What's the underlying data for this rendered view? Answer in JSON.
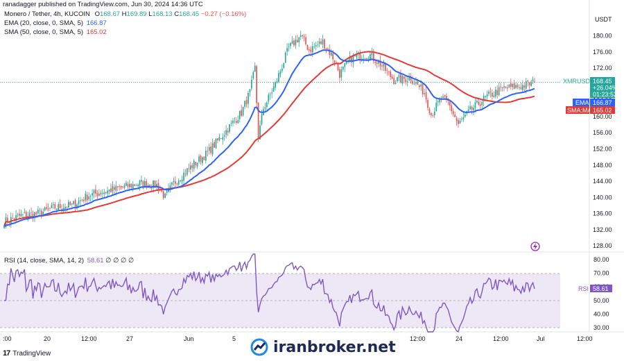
{
  "caption": "ranadagger published on TradingView.com, Jun 30, 2024 14:36 UTC",
  "legend": {
    "symbol": "Monero / Tether, 4h, KUCOIN",
    "o_label": "O",
    "o": "168.67",
    "h_label": "H",
    "h": "169.89",
    "l_label": "L",
    "l": "168.13",
    "c_label": "C",
    "c": "168.45",
    "change": "−0.27 (−0.16%)",
    "ema": "EMA (20, close, 0, SMA, 5)",
    "ema_value": "166.87",
    "sma": "SMA (50, close, 0, SMA, 5)",
    "sma_value": "165.02",
    "rsi": "RSI (14, close, SMA, 14, 2)",
    "rsi_value": "58.61",
    "rsi_extra": "∅ ∅ ∅ ∅"
  },
  "axis": {
    "currency": "USDT",
    "price_ticks": [
      "180.00",
      "176.00",
      "172.00",
      "168.00",
      "164.00",
      "160.00",
      "156.00",
      "152.00",
      "148.00",
      "144.00",
      "140.00",
      "136.00",
      "132.00",
      "128.00"
    ],
    "rsi_ticks": [
      "80.00",
      "70.00",
      "60.00",
      "50.00",
      "40.00",
      "30.00"
    ],
    "time_ticks": [
      ":00",
      "20",
      "12:00",
      "27",
      "Jun",
      "5",
      "12:00",
      "24",
      "12:00",
      "Jul",
      "12:00"
    ]
  },
  "price_tag": {
    "symbol": "XMRUSDT",
    "price": "168.45",
    "pct": "+26.04%",
    "countdown": "01:23:52"
  },
  "ema_tag": {
    "label": "EMA",
    "value": "166.87"
  },
  "sma_tag": {
    "label": "SMA:MA",
    "value": "165.02"
  },
  "rsi_tag": {
    "label": "RSI",
    "value": "58.61"
  },
  "watermark": "iranbroker.net",
  "tv_logo": "TradingView",
  "colors": {
    "up": "#26a69a",
    "down": "#ef5350",
    "ema": "#2962ff",
    "sma": "#e53935",
    "rsi": "#7e57c2",
    "rsi_band": "#ede7f6"
  },
  "chart_data": {
    "type": "candlestick",
    "symbol": "Monero / Tether (XMRUSDT), 4h, KUCOIN",
    "price_range": [
      127,
      183
    ],
    "rsi_range": [
      27,
      84
    ],
    "close_keypoints": [
      {
        "i": 0,
        "p": 134.0
      },
      {
        "i": 10,
        "p": 135.5
      },
      {
        "i": 20,
        "p": 136.0
      },
      {
        "i": 30,
        "p": 137.5
      },
      {
        "i": 40,
        "p": 138.0
      },
      {
        "i": 50,
        "p": 140.5
      },
      {
        "i": 60,
        "p": 141.5
      },
      {
        "i": 70,
        "p": 142.5
      },
      {
        "i": 80,
        "p": 143.5
      },
      {
        "i": 90,
        "p": 143.0
      },
      {
        "i": 95,
        "p": 140.0
      },
      {
        "i": 100,
        "p": 143.5
      },
      {
        "i": 110,
        "p": 147.5
      },
      {
        "i": 120,
        "p": 151.0
      },
      {
        "i": 130,
        "p": 156.0
      },
      {
        "i": 140,
        "p": 161.0
      },
      {
        "i": 145,
        "p": 166.0
      },
      {
        "i": 148,
        "p": 172.0
      },
      {
        "i": 150,
        "p": 155.0
      },
      {
        "i": 153,
        "p": 162.0
      },
      {
        "i": 160,
        "p": 168.0
      },
      {
        "i": 168,
        "p": 177.0
      },
      {
        "i": 175,
        "p": 180.0
      },
      {
        "i": 180,
        "p": 176.5
      },
      {
        "i": 188,
        "p": 178.5
      },
      {
        "i": 195,
        "p": 174.0
      },
      {
        "i": 198,
        "p": 170.5
      },
      {
        "i": 205,
        "p": 174.5
      },
      {
        "i": 215,
        "p": 175.5
      },
      {
        "i": 222,
        "p": 173.0
      },
      {
        "i": 230,
        "p": 169.0
      },
      {
        "i": 240,
        "p": 169.5
      },
      {
        "i": 248,
        "p": 166.0
      },
      {
        "i": 252,
        "p": 160.5
      },
      {
        "i": 258,
        "p": 164.5
      },
      {
        "i": 262,
        "p": 163.5
      },
      {
        "i": 268,
        "p": 158.0
      },
      {
        "i": 275,
        "p": 161.5
      },
      {
        "i": 285,
        "p": 165.0
      },
      {
        "i": 295,
        "p": 167.0
      },
      {
        "i": 305,
        "p": 167.5
      },
      {
        "i": 313,
        "p": 168.45
      }
    ],
    "ema20_last": 166.87,
    "sma50_last": 165.02,
    "rsi_last": 58.61
  }
}
